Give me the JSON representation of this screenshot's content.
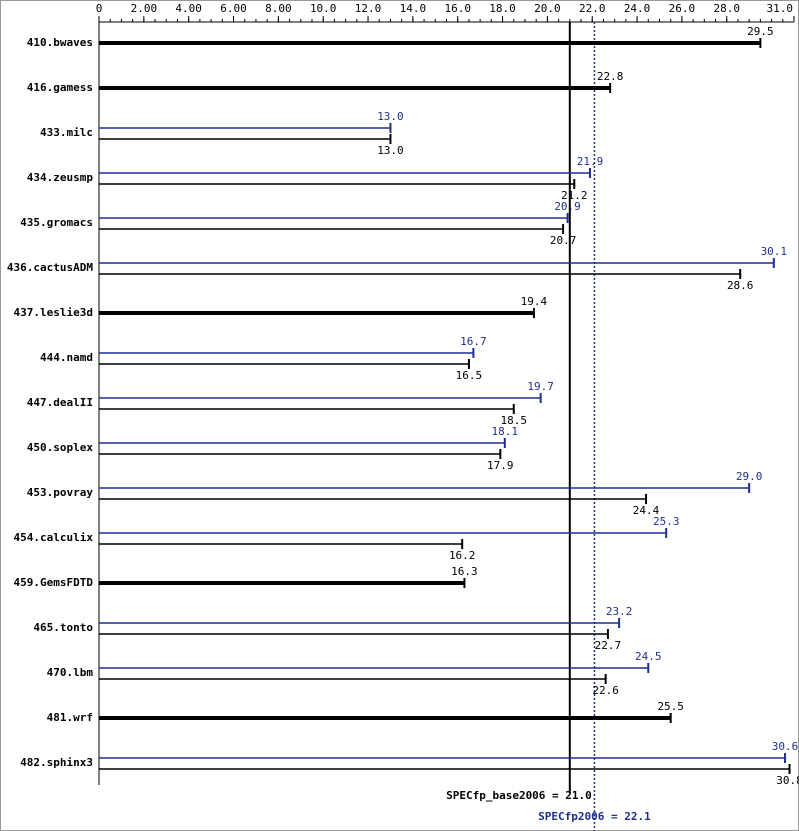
{
  "chart_data": {
    "type": "bar",
    "orientation": "horizontal",
    "categories": [
      "410.bwaves",
      "416.gamess",
      "433.milc",
      "434.zeusmp",
      "435.gromacs",
      "436.cactusADM",
      "437.leslie3d",
      "444.namd",
      "447.dealII",
      "450.soplex",
      "453.povray",
      "454.calculix",
      "459.GemsFDTD",
      "465.tonto",
      "470.lbm",
      "481.wrf",
      "482.sphinx3"
    ],
    "series": [
      {
        "name": "peak",
        "color": "#1f2f8f",
        "values": [
          null,
          null,
          13.0,
          21.9,
          20.9,
          30.1,
          null,
          16.7,
          19.7,
          18.1,
          29.0,
          25.3,
          null,
          23.2,
          24.5,
          null,
          30.6
        ]
      },
      {
        "name": "base",
        "color": "#000000",
        "values": [
          29.5,
          22.8,
          13.0,
          21.2,
          20.7,
          28.6,
          19.4,
          16.5,
          18.5,
          17.9,
          24.4,
          16.2,
          16.3,
          22.7,
          22.6,
          25.5,
          30.8
        ]
      }
    ],
    "xlim": [
      0,
      31
    ],
    "xticks": [
      0,
      {
        "value": 2,
        "label": "2.00"
      },
      {
        "value": 4,
        "label": "4.00"
      },
      {
        "value": 6,
        "label": "6.00"
      },
      {
        "value": 8,
        "label": "8.00"
      },
      {
        "value": 10,
        "label": "10.0"
      },
      {
        "value": 12,
        "label": "12.0"
      },
      {
        "value": 14,
        "label": "14.0"
      },
      {
        "value": 16,
        "label": "16.0"
      },
      {
        "value": 18,
        "label": "18.0"
      },
      {
        "value": 20,
        "label": "20.0"
      },
      {
        "value": 22,
        "label": "22.0"
      },
      {
        "value": 24,
        "label": "24.0"
      },
      {
        "value": 26,
        "label": "26.0"
      },
      {
        "value": 28,
        "label": "28.0"
      },
      {
        "value": 31,
        "label": "31.0"
      }
    ],
    "reference_lines": [
      {
        "label": "SPECfp_base2006 = 21.0",
        "value": 21.0,
        "color": "#000000",
        "style": "solid"
      },
      {
        "label": "SPECfp2006 = 22.1",
        "value": 22.1,
        "color": "#1f2f8f",
        "style": "dotted"
      }
    ]
  }
}
